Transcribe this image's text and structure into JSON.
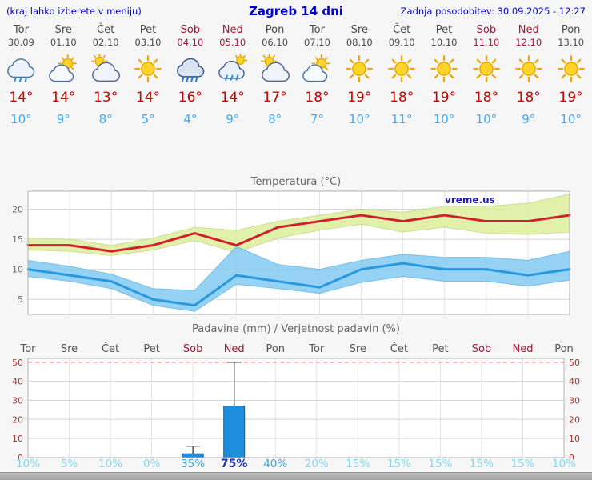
{
  "header": {
    "left_note": "(kraj lahko izberete v meniju)",
    "title": "Zagreb 14 dni",
    "updated": "Zadnja posodobitev: 30.09.2025 - 12:27"
  },
  "units": {
    "degree": "°",
    "percent": "%"
  },
  "colors": {
    "header_blue": "#0000cc",
    "weekday": "#4a4a4a",
    "weekend": "#a81538",
    "temp_max_red": "#cc0000",
    "temp_min_blue": "#3fa9f5",
    "max_line": "#d0202e",
    "max_band": "#dff0a0",
    "max_band_edge": "#b9cf6e",
    "min_line": "#2899e0",
    "min_band": "#8bcdf2",
    "min_band_edge": "#4aa7dc",
    "bar_fill": "#1f8fdd",
    "bar_border": "#0e5f9e",
    "axis_red": "#b03030",
    "threshold_red": "#ef8a8a",
    "prob_low": "#7fd9f2",
    "prob_mid": "#3fa8dc",
    "prob_high": "#1b2fbb",
    "watermark_blue": "#1a1aae"
  },
  "days": [
    {
      "name": "Tor",
      "date": "30.09",
      "icon": "rain",
      "tmax": 14,
      "tmin": 10,
      "weekend": false
    },
    {
      "name": "Sre",
      "date": "01.10",
      "icon": "sun-cloud",
      "tmax": 14,
      "tmin": 9,
      "weekend": false
    },
    {
      "name": "Čet",
      "date": "02.10",
      "icon": "cloud-sun",
      "tmax": 13,
      "tmin": 8,
      "weekend": false
    },
    {
      "name": "Pet",
      "date": "03.10",
      "icon": "sun",
      "tmax": 14,
      "tmin": 5,
      "weekend": false
    },
    {
      "name": "Sob",
      "date": "04.10",
      "icon": "heavy-rain",
      "tmax": 16,
      "tmin": 4,
      "weekend": true
    },
    {
      "name": "Ned",
      "date": "05.10",
      "icon": "rain-sun",
      "tmax": 14,
      "tmin": 9,
      "weekend": true
    },
    {
      "name": "Pon",
      "date": "06.10",
      "icon": "cloud-sun",
      "tmax": 17,
      "tmin": 8,
      "weekend": false
    },
    {
      "name": "Tor",
      "date": "07.10",
      "icon": "sun-cloud",
      "tmax": 18,
      "tmin": 7,
      "weekend": false
    },
    {
      "name": "Sre",
      "date": "08.10",
      "icon": "sun",
      "tmax": 19,
      "tmin": 10,
      "weekend": false
    },
    {
      "name": "Čet",
      "date": "09.10",
      "icon": "sun",
      "tmax": 18,
      "tmin": 11,
      "weekend": false
    },
    {
      "name": "Pet",
      "date": "10.10",
      "icon": "sun",
      "tmax": 19,
      "tmin": 10,
      "weekend": false
    },
    {
      "name": "Sob",
      "date": "11.10",
      "icon": "sun",
      "tmax": 18,
      "tmin": 10,
      "weekend": true
    },
    {
      "name": "Ned",
      "date": "12.10",
      "icon": "sun",
      "tmax": 18,
      "tmin": 9,
      "weekend": true
    },
    {
      "name": "Pon",
      "date": "13.10",
      "icon": "sun",
      "tmax": 19,
      "tmin": 10,
      "weekend": false
    }
  ],
  "chart_data": [
    {
      "type": "area",
      "title": "Temperatura (°C)",
      "watermark": "vreme.us",
      "x_labels": [
        "30.09",
        "01.10",
        "02.10",
        "03.10",
        "04.10",
        "05.10",
        "06.10",
        "07.10",
        "08.10",
        "09.10",
        "10.10",
        "11.10",
        "12.10",
        "13.10"
      ],
      "series": [
        {
          "name": "max_temp",
          "values": [
            14,
            14,
            13,
            14,
            16,
            14,
            17,
            18,
            19,
            18,
            19,
            18,
            18,
            19
          ]
        },
        {
          "name": "max_band_hi",
          "values": [
            15.2,
            15,
            14,
            15.2,
            17,
            16.5,
            18,
            19,
            20,
            19.5,
            20.5,
            20.5,
            21,
            22.5
          ]
        },
        {
          "name": "max_band_lo",
          "values": [
            13.2,
            13,
            12.3,
            13.2,
            14.8,
            12.8,
            15.2,
            16.5,
            17.5,
            16.2,
            17,
            16,
            15.8,
            16.2
          ]
        },
        {
          "name": "min_temp",
          "values": [
            10,
            9,
            8,
            5,
            4,
            9,
            8,
            7,
            10,
            11,
            10,
            10,
            9,
            10
          ]
        },
        {
          "name": "min_band_hi",
          "values": [
            11.5,
            10.5,
            9.2,
            6.8,
            6.5,
            13.8,
            10.8,
            10,
            11.5,
            12.5,
            12,
            12,
            11.5,
            13
          ]
        },
        {
          "name": "min_band_lo",
          "values": [
            8.8,
            8,
            6.8,
            4,
            3,
            7.5,
            6.8,
            6,
            7.8,
            8.8,
            8,
            8,
            7.2,
            8.2
          ]
        }
      ],
      "ylim": [
        2.5,
        23
      ],
      "yticks": [
        5,
        10,
        15,
        20
      ],
      "grid": true,
      "legend_position": "none"
    },
    {
      "type": "bar",
      "title": "Padavine (mm) / Verjetnost padavin (%)",
      "categories": [
        "Tor",
        "Sre",
        "Čet",
        "Pet",
        "Sob",
        "Ned",
        "Pon",
        "Tor",
        "Sre",
        "Čet",
        "Pet",
        "Sob",
        "Ned",
        "Pon"
      ],
      "precip_mm": [
        0,
        0,
        0,
        0,
        2,
        27,
        0,
        0,
        0,
        0,
        0,
        0,
        0,
        0
      ],
      "precip_max_mm": [
        0,
        0,
        0,
        0,
        6,
        50,
        0,
        0,
        0,
        0,
        0,
        0,
        0,
        0
      ],
      "probability_pct": [
        10,
        5,
        10,
        0,
        35,
        75,
        40,
        20,
        15,
        15,
        15,
        15,
        15,
        10
      ],
      "ylim": [
        0,
        52
      ],
      "yticks": [
        0,
        10,
        20,
        30,
        40,
        50
      ],
      "threshold_mm": 50,
      "grid": true,
      "legend_position": "none"
    }
  ]
}
